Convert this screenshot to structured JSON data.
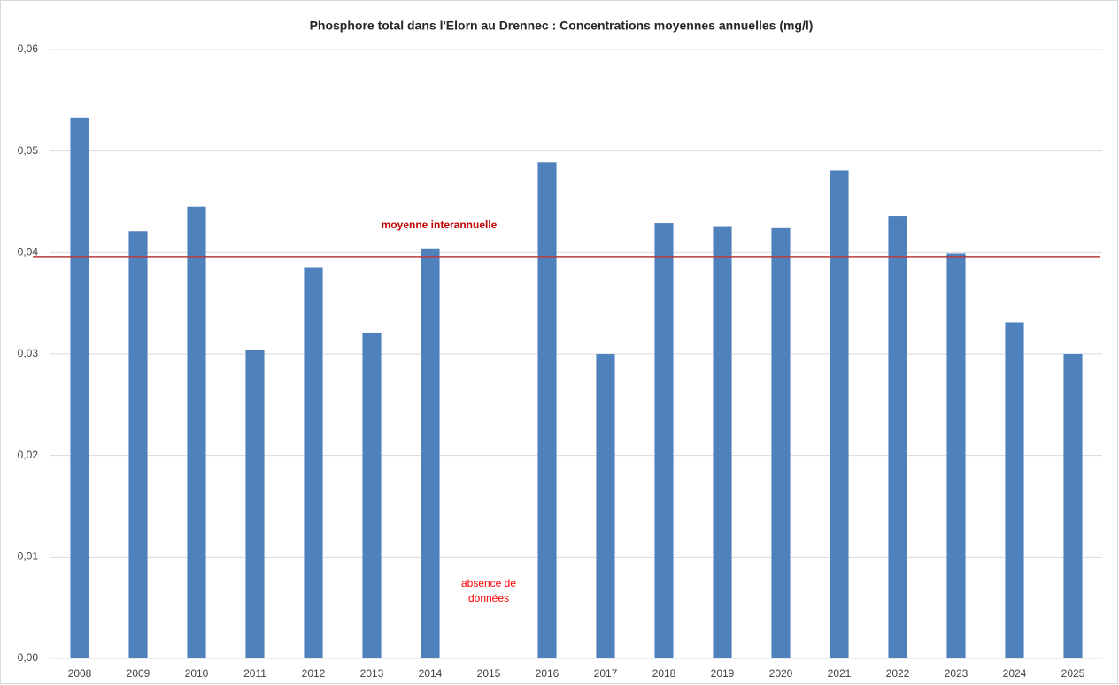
{
  "chart_data": {
    "type": "bar",
    "title": "Phosphore total dans l'Elorn au Drennec : Concentrations moyennes annuelles (mg/l)",
    "categories": [
      "2008",
      "2009",
      "2010",
      "2011",
      "2012",
      "2013",
      "2014",
      "2015",
      "2016",
      "2017",
      "2018",
      "2019",
      "2020",
      "2021",
      "2022",
      "2023",
      "2024",
      "2025"
    ],
    "values": [
      0.0533,
      0.0421,
      0.0445,
      0.0304,
      0.0385,
      0.0321,
      0.0404,
      null,
      0.0489,
      0.03,
      0.0429,
      0.0426,
      0.0424,
      0.0481,
      0.0436,
      0.0399,
      0.0331,
      0.03
    ],
    "color": "#4f81bd",
    "ylim": [
      0,
      0.06
    ],
    "yticks": [
      {
        "value": 0,
        "label": "0,00"
      },
      {
        "value": 0.01,
        "label": "0,01"
      },
      {
        "value": 0.02,
        "label": "0,02"
      },
      {
        "value": 0.03,
        "label": "0,03"
      },
      {
        "value": 0.04,
        "label": "0,04"
      },
      {
        "value": 0.05,
        "label": "0,05"
      },
      {
        "value": 0.06,
        "label": "0,06"
      }
    ],
    "grid": true,
    "reference_line": {
      "label": "moyenne interannuelle",
      "value": 0.0396,
      "color": "#b83b3b"
    },
    "annotation": {
      "category": "2015",
      "lines": [
        "absence de",
        "données"
      ],
      "color": "#ff0000"
    }
  }
}
